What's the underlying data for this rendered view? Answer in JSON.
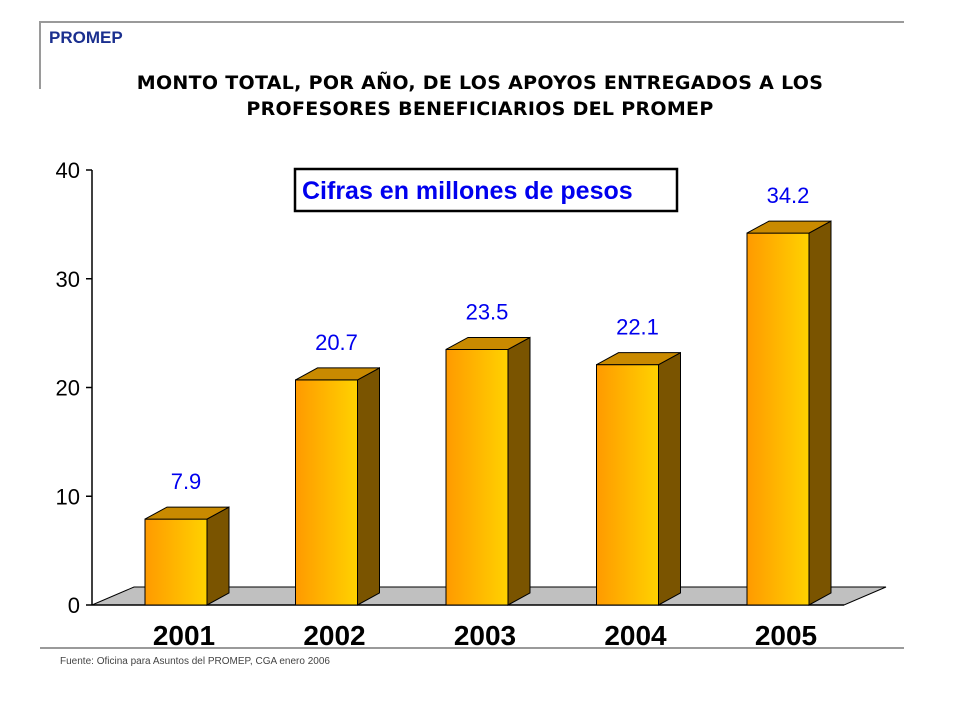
{
  "header": {
    "brand": "PROMEP",
    "title_line1": "MONTO TOTAL, POR AÑO, DE LOS APOYOS ENTREGADOS A LOS",
    "title_line2": "PROFESORES BENEFICIARIOS DEL PROMEP"
  },
  "footer": {
    "source": "Fuente: Oficina para Asuntos del PROMEP,  CGA enero 2006"
  },
  "chart_data": {
    "type": "bar",
    "title": "MONTO TOTAL, POR AÑO, DE LOS APOYOS ENTREGADOS A LOS PROFESORES BENEFICIARIOS DEL PROMEP",
    "annotation": "Cifras en  millones de pesos",
    "categories": [
      "2001",
      "2002",
      "2003",
      "2004",
      "2005"
    ],
    "values": [
      7.9,
      20.7,
      23.5,
      22.1,
      34.2
    ],
    "data_labels": [
      "7.9",
      "20.7",
      "23.5",
      "22.1",
      "34.2"
    ],
    "yticks": [
      "0",
      "10",
      "20",
      "30",
      "40"
    ],
    "ylim": [
      0,
      40
    ],
    "xlabel": "",
    "ylabel": "",
    "grid": false,
    "legend": "none",
    "style": "3d-bar"
  },
  "colors": {
    "bar_left": "#ff9a00",
    "bar_right": "#ffd200",
    "bar_side": "#7a5400",
    "bar_top": "#c98a00",
    "data_label": "#0000ee",
    "floor": "#c0c0c0",
    "brand": "#1a2f8f"
  }
}
